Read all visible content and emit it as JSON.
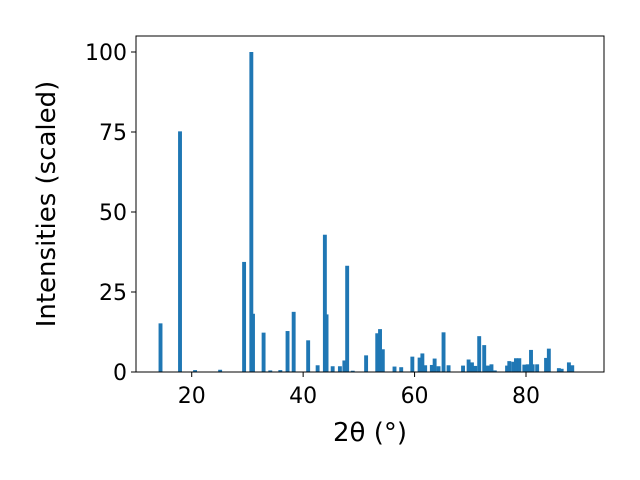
{
  "chart_data": {
    "type": "bar",
    "xlabel": "2θ (°)",
    "ylabel": "Intensities (scaled)",
    "xlim": [
      10,
      94
    ],
    "ylim": [
      0,
      105
    ],
    "xticks": [
      20,
      40,
      60,
      80
    ],
    "yticks": [
      0,
      25,
      50,
      75,
      100
    ],
    "grid": false,
    "bar_color": "#1f77b4",
    "bar_width": 0.7,
    "x": [
      14.4,
      17.9,
      20.6,
      25.1,
      29.4,
      30.7,
      31.0,
      32.9,
      34.1,
      35.9,
      37.2,
      38.3,
      40.9,
      42.6,
      43.9,
      44.2,
      45.3,
      46.6,
      47.4,
      47.9,
      48.9,
      51.3,
      53.3,
      53.8,
      54.3,
      56.4,
      57.6,
      59.6,
      60.9,
      61.4,
      61.9,
      63.1,
      63.6,
      64.3,
      65.2,
      66.1,
      68.7,
      69.7,
      70.3,
      70.9,
      71.6,
      72.5,
      73.1,
      73.8,
      74.4,
      76.6,
      77.0,
      77.7,
      78.2,
      78.8,
      79.7,
      80.3,
      80.9,
      81.2,
      82.0,
      83.6,
      84.1,
      85.9,
      86.4,
      87.7,
      88.3
    ],
    "values": [
      15.2,
      75.2,
      0.6,
      0.7,
      34.4,
      100.0,
      18.2,
      12.3,
      0.5,
      0.6,
      12.8,
      18.8,
      9.9,
      2.1,
      42.9,
      18.0,
      1.8,
      1.8,
      3.6,
      33.2,
      0.4,
      5.2,
      12.1,
      13.4,
      7.1,
      1.7,
      1.5,
      4.8,
      4.5,
      5.8,
      2.1,
      2.2,
      4.2,
      1.8,
      12.4,
      2.1,
      2.0,
      3.9,
      3.0,
      1.9,
      11.2,
      8.4,
      2.0,
      2.4,
      0.5,
      2.0,
      3.4,
      3.2,
      4.3,
      4.3,
      2.3,
      2.4,
      6.9,
      2.4,
      2.4,
      4.4,
      7.3,
      1.2,
      1.0,
      3.0,
      2.1
    ]
  }
}
